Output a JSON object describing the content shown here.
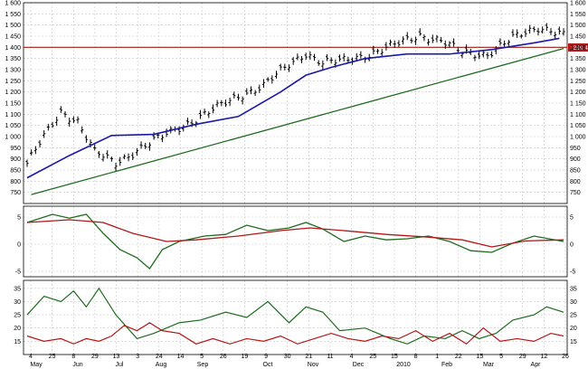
{
  "colors": {
    "price_bars": "#000000",
    "moving_average": "#1a1aa6",
    "resistance_line": "#a11d12",
    "trend_line": "#1e6b1e",
    "osc_fast": "#1e6b1e",
    "osc_slow": "#b01818",
    "adx": "#1e6b1e",
    "adx_low": "#b01818",
    "price_tag_bg": "#b01818"
  },
  "chart_data": [
    {
      "type": "bar",
      "style": "ohlc",
      "title": "",
      "price_tag": "1399.4",
      "ylim": [
        700,
        1600
      ],
      "y_ticks": [
        "1 600",
        "1 550",
        "1 500",
        "1 450",
        "1 400",
        "1 350",
        "1 300",
        "1 250",
        "1 200",
        "1 150",
        "1 100",
        "1 050",
        "1 000",
        "950",
        "900",
        "850",
        "800",
        "750"
      ],
      "x_tick_labels": [
        "4",
        "25",
        "8",
        "29",
        "13",
        "3",
        "24",
        "14",
        "5",
        "26",
        "19",
        "9",
        "30",
        "21",
        "11",
        "4",
        "25",
        "15",
        "8",
        "1",
        "22",
        "15",
        "5",
        "29",
        "12",
        "26"
      ],
      "month_labels": [
        "May",
        "Jun",
        "Jul",
        "Aug",
        "Sep",
        "Oct",
        "Nov",
        "Dec",
        "2010",
        "Feb",
        "Mar",
        "Apr"
      ],
      "close_anchors": [
        [
          0,
          880
        ],
        [
          3,
          970
        ],
        [
          8,
          1110
        ],
        [
          12,
          1070
        ],
        [
          16,
          930
        ],
        [
          21,
          880
        ],
        [
          26,
          940
        ],
        [
          33,
          1010
        ],
        [
          38,
          1060
        ],
        [
          44,
          1120
        ],
        [
          50,
          1180
        ],
        [
          56,
          1230
        ],
        [
          62,
          1320
        ],
        [
          66,
          1375
        ],
        [
          70,
          1330
        ],
        [
          75,
          1340
        ],
        [
          81,
          1370
        ],
        [
          87,
          1410
        ],
        [
          93,
          1455
        ],
        [
          98,
          1430
        ],
        [
          103,
          1375
        ],
        [
          109,
          1370
        ],
        [
          115,
          1440
        ],
        [
          121,
          1490
        ],
        [
          124,
          1480
        ],
        [
          127,
          1455
        ]
      ],
      "moving_average": [
        [
          0,
          815
        ],
        [
          10,
          915
        ],
        [
          20,
          1005
        ],
        [
          30,
          1010
        ],
        [
          40,
          1055
        ],
        [
          50,
          1090
        ],
        [
          60,
          1200
        ],
        [
          66,
          1275
        ],
        [
          72,
          1310
        ],
        [
          80,
          1350
        ],
        [
          90,
          1370
        ],
        [
          100,
          1370
        ],
        [
          110,
          1390
        ],
        [
          120,
          1420
        ],
        [
          126,
          1440
        ]
      ],
      "resistance_level": 1400,
      "trend_line": [
        [
          1,
          740
        ],
        [
          127,
          1395
        ]
      ]
    },
    {
      "type": "line",
      "title": "",
      "ylim": [
        -6,
        7
      ],
      "y_ticks": [
        "5",
        "0",
        "-5"
      ],
      "series": [
        {
          "values": [
            [
              0,
              4
            ],
            [
              6,
              5.5
            ],
            [
              10,
              4.8
            ],
            [
              14,
              5.5
            ],
            [
              18,
              2
            ],
            [
              22,
              -1
            ],
            [
              26,
              -2.5
            ],
            [
              29,
              -4.5
            ],
            [
              32,
              -1
            ],
            [
              36,
              0.5
            ],
            [
              42,
              1.5
            ],
            [
              47,
              1.8
            ],
            [
              52,
              3.5
            ],
            [
              57,
              2.5
            ],
            [
              62,
              3
            ],
            [
              66,
              4
            ],
            [
              70,
              2.8
            ],
            [
              75,
              0.5
            ],
            [
              80,
              1.5
            ],
            [
              85,
              0.8
            ],
            [
              90,
              1
            ],
            [
              95,
              1.5
            ],
            [
              100,
              0.5
            ],
            [
              105,
              -1.2
            ],
            [
              110,
              -1.5
            ],
            [
              115,
              0.2
            ],
            [
              120,
              1.5
            ],
            [
              127,
              0.5
            ]
          ]
        },
        {
          "values": [
            [
              0,
              4
            ],
            [
              10,
              4.5
            ],
            [
              18,
              4
            ],
            [
              25,
              2
            ],
            [
              33,
              0.5
            ],
            [
              40,
              0.8
            ],
            [
              50,
              1.5
            ],
            [
              60,
              2.5
            ],
            [
              67,
              3
            ],
            [
              75,
              2.5
            ],
            [
              85,
              1.8
            ],
            [
              95,
              1.3
            ],
            [
              103,
              0.8
            ],
            [
              110,
              -0.5
            ],
            [
              118,
              0.6
            ],
            [
              127,
              0.8
            ]
          ]
        }
      ]
    },
    {
      "type": "line",
      "title": "",
      "ylim": [
        10,
        38
      ],
      "y_ticks": [
        "35",
        "30",
        "25",
        "20",
        "15"
      ],
      "series": [
        {
          "values": [
            [
              0,
              25
            ],
            [
              4,
              32
            ],
            [
              8,
              30
            ],
            [
              11,
              34
            ],
            [
              14,
              28
            ],
            [
              17,
              35
            ],
            [
              21,
              25
            ],
            [
              26,
              16
            ],
            [
              30,
              18
            ],
            [
              36,
              22
            ],
            [
              41,
              23
            ],
            [
              47,
              26
            ],
            [
              52,
              24
            ],
            [
              57,
              30
            ],
            [
              62,
              22
            ],
            [
              66,
              28
            ],
            [
              70,
              26
            ],
            [
              74,
              19
            ],
            [
              80,
              20
            ],
            [
              86,
              16
            ],
            [
              90,
              14
            ],
            [
              94,
              17
            ],
            [
              99,
              16
            ],
            [
              103,
              19
            ],
            [
              107,
              16
            ],
            [
              111,
              18
            ],
            [
              115,
              23
            ],
            [
              120,
              25
            ],
            [
              123,
              28
            ],
            [
              127,
              26
            ]
          ]
        },
        {
          "values": [
            [
              0,
              17
            ],
            [
              4,
              15
            ],
            [
              8,
              16
            ],
            [
              11,
              14
            ],
            [
              14,
              16
            ],
            [
              17,
              15
            ],
            [
              20,
              17
            ],
            [
              23,
              21
            ],
            [
              26,
              19
            ],
            [
              29,
              22
            ],
            [
              32,
              19
            ],
            [
              36,
              18
            ],
            [
              40,
              14
            ],
            [
              44,
              16
            ],
            [
              48,
              14
            ],
            [
              52,
              16
            ],
            [
              56,
              15
            ],
            [
              60,
              17
            ],
            [
              64,
              14
            ],
            [
              68,
              16
            ],
            [
              72,
              18
            ],
            [
              76,
              16
            ],
            [
              80,
              15
            ],
            [
              84,
              17
            ],
            [
              88,
              16
            ],
            [
              92,
              19
            ],
            [
              96,
              15
            ],
            [
              100,
              18
            ],
            [
              104,
              14
            ],
            [
              108,
              20
            ],
            [
              112,
              15
            ],
            [
              116,
              16
            ],
            [
              120,
              15
            ],
            [
              124,
              18
            ],
            [
              127,
              17
            ]
          ]
        }
      ]
    }
  ]
}
